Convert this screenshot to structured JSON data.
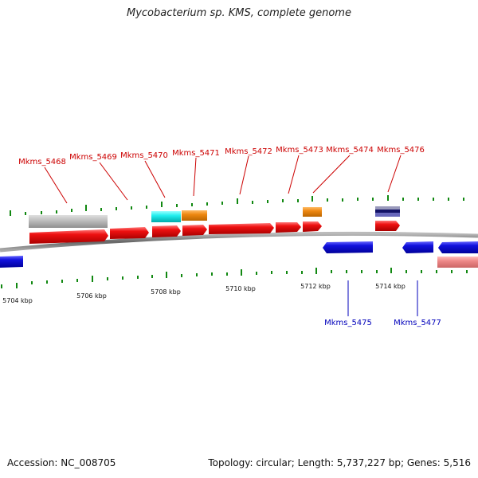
{
  "title": "Mycobacterium sp. KMS, complete genome",
  "footer": {
    "accession": "Accession: NC_008705",
    "summary": "Topology: circular; Length: 5,737,227 bp; Genes: 5,516"
  },
  "axis": {
    "tick_labels": [
      "5704 kbp",
      "5706 kbp",
      "5708 kbp",
      "5710 kbp",
      "5712 kbp",
      "5714 kbp"
    ]
  },
  "genes_forward": [
    "Mkms_5468",
    "Mkms_5469",
    "Mkms_5470",
    "Mkms_5471",
    "Mkms_5472",
    "Mkms_5473",
    "Mkms_5474",
    "Mkms_5476"
  ],
  "genes_reverse": [
    "Mkms_5475",
    "Mkms_5477"
  ],
  "colors": {
    "cds_forward": "#ee1111",
    "cds_reverse": "#1111dd",
    "backbone": "#888888",
    "tick": "#118811",
    "gray_feature": "#c0c0c0",
    "cyan_feature": "#22eeee",
    "orange_feature": "#ee8811",
    "pink_feature": "#ee8888",
    "navy_feature": "#222288"
  }
}
